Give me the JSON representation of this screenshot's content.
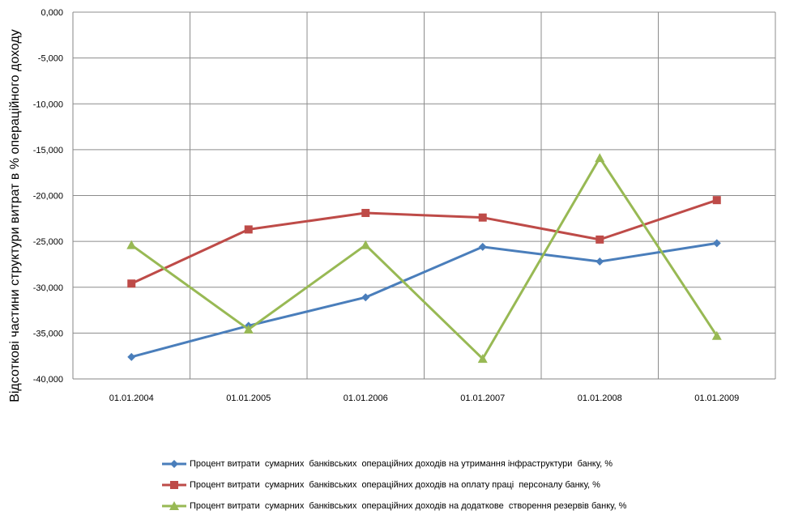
{
  "chart_data": {
    "type": "line",
    "ylabel": "Відсоткові частини структури витрат в % операційного доходу",
    "xlabel": "",
    "categories": [
      "01.01.2004",
      "01.01.2005",
      "01.01.2006",
      "01.01.2007",
      "01.01.2008",
      "01.01.2009"
    ],
    "ylim": [
      -40,
      0
    ],
    "yticks": [
      0,
      -5,
      -10,
      -15,
      -20,
      -25,
      -30,
      -35,
      -40
    ],
    "ytick_labels": [
      "0,000",
      "-5,000",
      "-10,000",
      "-15,000",
      "-20,000",
      "-25,000",
      "-30,000",
      "-35,000",
      "-40,000"
    ],
    "grid": true,
    "legend_position": "bottom",
    "series": [
      {
        "name": "Процент витрати  сумарних  банківських  операційних доходів на утримання інфраструктури  банку, %",
        "values": [
          -37.6,
          -34.2,
          -31.1,
          -25.6,
          -27.2,
          -25.2
        ],
        "color": "#4a7ebb",
        "marker": "diamond"
      },
      {
        "name": "Процент витрати  сумарних  банківських  операційних доходів на оплату праці  персоналу банку, %",
        "values": [
          -29.6,
          -23.7,
          -21.9,
          -22.4,
          -24.8,
          -20.5
        ],
        "color": "#be4b48",
        "marker": "square"
      },
      {
        "name": "Процент витрати  сумарних  банківських  операційних доходів на додаткове  створення резервів банку, %",
        "values": [
          -25.4,
          -34.6,
          -25.4,
          -37.8,
          -15.9,
          -35.3
        ],
        "color": "#98b954",
        "marker": "triangle"
      }
    ]
  }
}
